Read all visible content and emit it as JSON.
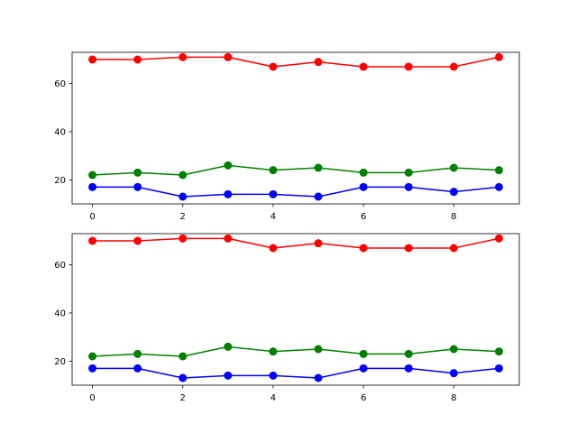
{
  "chart_data": [
    {
      "type": "line",
      "x": [
        0,
        1,
        2,
        3,
        4,
        5,
        6,
        7,
        8,
        9
      ],
      "xlim": [
        -0.45,
        9.45
      ],
      "ylim": [
        10,
        73
      ],
      "xticks": [
        0,
        2,
        4,
        6,
        8
      ],
      "yticks": [
        20,
        40,
        60
      ],
      "xtick_labels": [
        "0",
        "2",
        "4",
        "6",
        "8"
      ],
      "ytick_labels": [
        "20",
        "40",
        "60"
      ],
      "grid": false,
      "series": [
        {
          "color": "#ff0000",
          "marker": "circle",
          "values": [
            70,
            70,
            71,
            71,
            67,
            69,
            67,
            67,
            67,
            71
          ]
        },
        {
          "color": "#008000",
          "marker": "circle",
          "values": [
            22,
            23,
            22,
            26,
            24,
            25,
            23,
            23,
            25,
            24
          ]
        },
        {
          "color": "#0000ff",
          "marker": "circle",
          "values": [
            17,
            17,
            13,
            14,
            14,
            13,
            17,
            17,
            15,
            17
          ]
        }
      ]
    },
    {
      "type": "line",
      "x": [
        0,
        1,
        2,
        3,
        4,
        5,
        6,
        7,
        8,
        9
      ],
      "xlim": [
        -0.45,
        9.45
      ],
      "ylim": [
        10,
        73
      ],
      "xticks": [
        0,
        2,
        4,
        6,
        8
      ],
      "yticks": [
        20,
        40,
        60
      ],
      "xtick_labels": [
        "0",
        "2",
        "4",
        "6",
        "8"
      ],
      "ytick_labels": [
        "20",
        "40",
        "60"
      ],
      "grid": false,
      "series": [
        {
          "color": "#ff0000",
          "marker": "circle",
          "values": [
            70,
            70,
            71,
            71,
            67,
            69,
            67,
            67,
            67,
            71
          ]
        },
        {
          "color": "#008000",
          "marker": "circle",
          "values": [
            22,
            23,
            22,
            26,
            24,
            25,
            23,
            23,
            25,
            24
          ]
        },
        {
          "color": "#0000ff",
          "marker": "circle",
          "values": [
            17,
            17,
            13,
            14,
            14,
            13,
            17,
            17,
            15,
            17
          ]
        }
      ]
    }
  ]
}
